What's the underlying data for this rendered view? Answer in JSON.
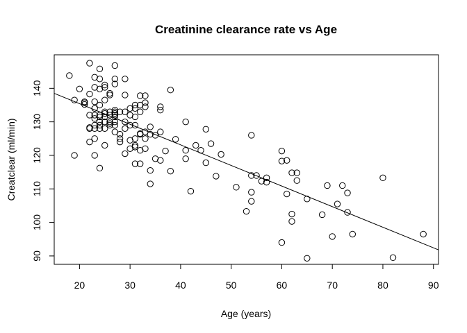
{
  "chart_data": {
    "type": "scatter",
    "title": "Creatinine clearance rate vs Age",
    "xlabel": "Age (years)",
    "ylabel": "Creatclear (ml/min)",
    "xlim": [
      15,
      91
    ],
    "ylim": [
      87.5,
      150
    ],
    "xticks": [
      20,
      30,
      40,
      50,
      60,
      70,
      80,
      90
    ],
    "yticks": [
      90,
      100,
      110,
      120,
      130,
      140
    ],
    "grid": false,
    "regression_line": {
      "x": [
        15,
        91
      ],
      "y": [
        138.5,
        91.8
      ]
    },
    "points": [
      [
        18,
        143.8
      ],
      [
        20,
        139.8
      ],
      [
        19,
        136.5
      ],
      [
        21,
        135.7
      ],
      [
        21,
        135.2
      ],
      [
        21,
        136
      ],
      [
        19,
        120
      ],
      [
        22,
        147.5
      ],
      [
        22,
        138.3
      ],
      [
        22,
        128.3
      ],
      [
        22,
        128
      ],
      [
        22,
        124
      ],
      [
        22,
        132
      ],
      [
        23,
        143.3
      ],
      [
        23,
        140.3
      ],
      [
        23,
        136
      ],
      [
        23,
        134
      ],
      [
        23,
        132
      ],
      [
        23,
        131
      ],
      [
        23,
        129
      ],
      [
        23,
        128
      ],
      [
        23,
        125
      ],
      [
        23,
        120
      ],
      [
        24,
        145.8
      ],
      [
        24,
        142.8
      ],
      [
        24,
        139.8
      ],
      [
        24,
        135
      ],
      [
        24,
        132
      ],
      [
        24,
        131.5
      ],
      [
        24,
        130
      ],
      [
        24,
        129
      ],
      [
        24,
        128
      ],
      [
        24,
        116.2
      ],
      [
        25,
        141
      ],
      [
        25,
        140.3
      ],
      [
        25,
        136.5
      ],
      [
        25,
        133
      ],
      [
        25,
        132.5
      ],
      [
        25,
        131.5
      ],
      [
        25,
        130
      ],
      [
        25,
        128
      ],
      [
        25,
        123
      ],
      [
        26,
        138.5
      ],
      [
        26,
        138
      ],
      [
        26,
        133
      ],
      [
        26,
        132
      ],
      [
        26,
        130
      ],
      [
        26,
        129.5
      ],
      [
        26,
        129
      ],
      [
        27,
        146.8
      ],
      [
        27,
        142.8
      ],
      [
        27,
        141.3
      ],
      [
        27,
        133.5
      ],
      [
        27,
        133
      ],
      [
        27,
        132.5
      ],
      [
        27,
        132
      ],
      [
        27,
        131.5
      ],
      [
        27,
        130
      ],
      [
        27,
        129
      ],
      [
        27,
        127
      ],
      [
        28,
        133
      ],
      [
        28,
        126.3
      ],
      [
        28,
        125
      ],
      [
        28,
        124
      ],
      [
        29,
        142.8
      ],
      [
        29,
        138
      ],
      [
        29,
        133
      ],
      [
        29,
        130
      ],
      [
        29,
        128
      ],
      [
        29,
        120.5
      ],
      [
        30,
        134
      ],
      [
        30,
        132
      ],
      [
        30,
        129
      ],
      [
        30,
        124.5
      ],
      [
        30,
        122
      ],
      [
        31,
        135
      ],
      [
        31,
        134
      ],
      [
        31,
        131.5
      ],
      [
        31,
        129
      ],
      [
        31,
        125
      ],
      [
        31,
        123
      ],
      [
        31,
        122.5
      ],
      [
        31,
        117.5
      ],
      [
        32,
        137.8
      ],
      [
        32,
        135
      ],
      [
        32,
        133
      ],
      [
        32,
        126.5
      ],
      [
        32,
        126.3
      ],
      [
        32,
        121.5
      ],
      [
        32,
        117.5
      ],
      [
        33,
        137.8
      ],
      [
        33,
        135.7
      ],
      [
        33,
        134.5
      ],
      [
        33,
        127
      ],
      [
        33,
        125
      ],
      [
        33,
        122
      ],
      [
        34,
        128.5
      ],
      [
        34,
        126.3
      ],
      [
        34,
        115.5
      ],
      [
        34,
        111.5
      ],
      [
        35,
        126
      ],
      [
        35,
        119
      ],
      [
        36,
        134.5
      ],
      [
        36,
        133.5
      ],
      [
        36,
        127
      ],
      [
        36,
        118.5
      ],
      [
        37,
        121.3
      ],
      [
        38,
        139.5
      ],
      [
        38,
        115.3
      ],
      [
        39,
        124.8
      ],
      [
        41,
        130
      ],
      [
        41,
        121.5
      ],
      [
        41,
        119
      ],
      [
        42,
        109.3
      ],
      [
        43,
        123
      ],
      [
        44,
        121.5
      ],
      [
        45,
        127.8
      ],
      [
        45,
        117.8
      ],
      [
        46,
        123.5
      ],
      [
        47,
        113.8
      ],
      [
        48,
        120.3
      ],
      [
        51,
        110.5
      ],
      [
        53,
        103.3
      ],
      [
        54,
        126
      ],
      [
        54,
        114
      ],
      [
        54,
        109
      ],
      [
        54,
        106.3
      ],
      [
        55,
        114
      ],
      [
        56,
        112.3
      ],
      [
        57,
        113.3
      ],
      [
        57,
        112
      ],
      [
        60,
        121.3
      ],
      [
        60,
        118.3
      ],
      [
        60,
        94
      ],
      [
        61,
        118.5
      ],
      [
        61,
        108.5
      ],
      [
        62,
        114.8
      ],
      [
        62,
        102.5
      ],
      [
        62,
        100.3
      ],
      [
        63,
        114.8
      ],
      [
        63,
        112.5
      ],
      [
        65,
        107
      ],
      [
        65,
        89.3
      ],
      [
        68,
        102.3
      ],
      [
        69,
        111
      ],
      [
        70,
        95.8
      ],
      [
        71,
        105.5
      ],
      [
        72,
        111
      ],
      [
        73,
        108.8
      ],
      [
        73,
        103
      ],
      [
        74,
        96.5
      ],
      [
        80,
        113.3
      ],
      [
        82,
        89.5
      ],
      [
        88,
        96.5
      ]
    ]
  }
}
